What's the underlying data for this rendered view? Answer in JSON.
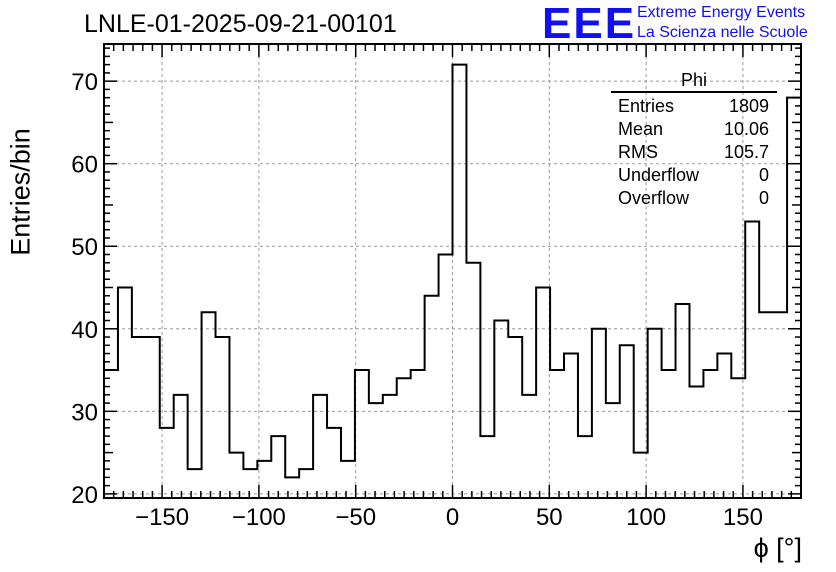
{
  "plot_title": "LNLE-01-2025-09-21-00101",
  "logo": {
    "letters": "EEE",
    "line1": "Extreme Energy Events",
    "line2": "La Scienza nelle Scuole",
    "color": "#1010f0"
  },
  "stats_box": {
    "title": "Phi",
    "rows": [
      {
        "label": "Entries",
        "value": "1809"
      },
      {
        "label": "Mean",
        "value": "10.06"
      },
      {
        "label": "RMS",
        "value": "105.7"
      },
      {
        "label": "Underflow",
        "value": "0"
      },
      {
        "label": "Overflow",
        "value": "0"
      }
    ]
  },
  "chart_data": {
    "type": "histogram",
    "title": "LNLE-01-2025-09-21-00101",
    "xlabel": "ϕ [°]",
    "ylabel": "Entries/bin",
    "xlim": [
      -180,
      180
    ],
    "ylim": [
      19.5,
      74.5
    ],
    "grid": true,
    "bin_width": 7.2,
    "xticks": [
      -150,
      -100,
      -50,
      0,
      50,
      100,
      150
    ],
    "xtick_labels": [
      "−150",
      "−100",
      "−50",
      "0",
      "50",
      "100",
      "150"
    ],
    "yticks": [
      20,
      30,
      40,
      50,
      60,
      70
    ],
    "ytick_labels": [
      "20",
      "30",
      "40",
      "50",
      "60",
      "70"
    ],
    "values": [
      35,
      45,
      39,
      39,
      28,
      32,
      23,
      42,
      39,
      25,
      23,
      24,
      27,
      22,
      23,
      32,
      28,
      24,
      35,
      31,
      32,
      34,
      35,
      44,
      49,
      72,
      48,
      27,
      41,
      39,
      32,
      45,
      35,
      37,
      27,
      40,
      31,
      38,
      25,
      40,
      35,
      43,
      33,
      35,
      37,
      34,
      53,
      42,
      42,
      68
    ]
  }
}
